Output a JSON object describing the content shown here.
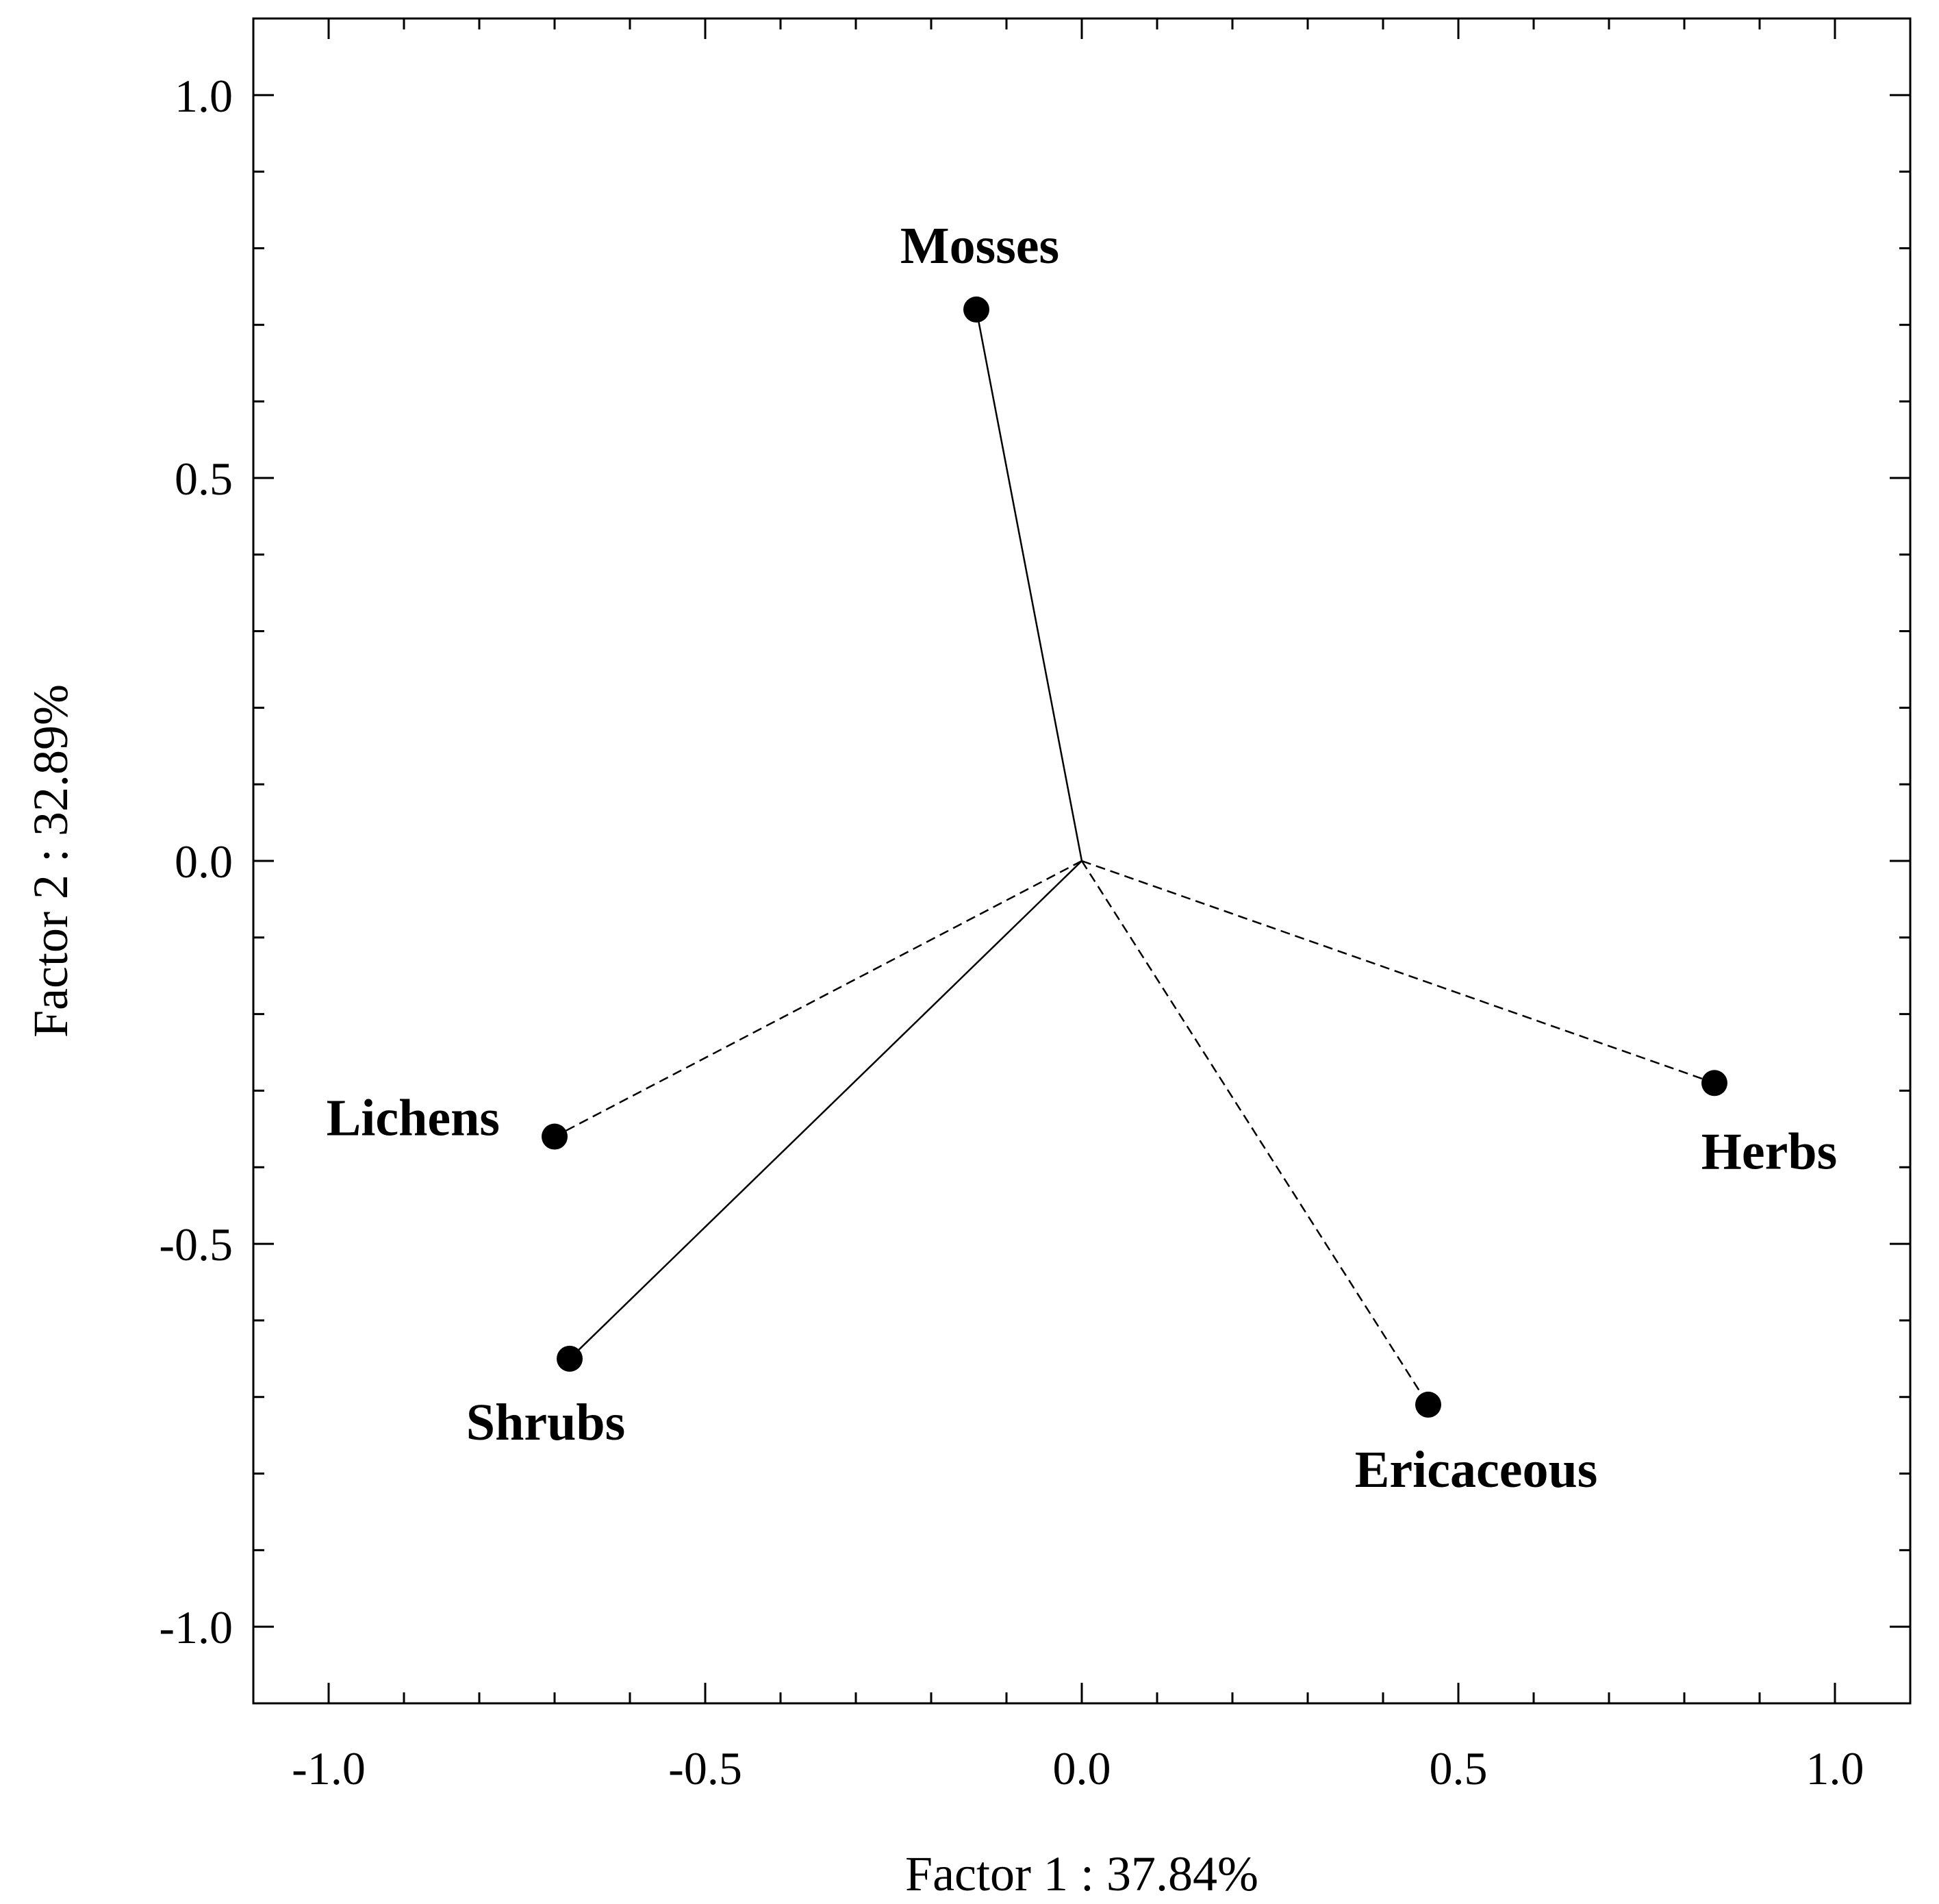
{
  "chart_data": {
    "type": "scatter",
    "xlabel": "Factor 1 : 37.84%",
    "ylabel": "Factor 2 : 32.89%",
    "xlim": [
      -1.1,
      1.1
    ],
    "ylim": [
      -1.1,
      1.1
    ],
    "xticks": [
      -1.0,
      -0.5,
      0.0,
      0.5,
      1.0
    ],
    "yticks": [
      -1.0,
      -0.5,
      0.0,
      0.5,
      1.0
    ],
    "xtick_labels": [
      "-1.0",
      "-0.5",
      "0.0",
      "0.5",
      "1.0"
    ],
    "ytick_labels": [
      "-1.0",
      "-0.5",
      "0.0",
      "0.5",
      "1.0"
    ],
    "grid": false,
    "points": [
      {
        "label": "Mosses",
        "x": -0.14,
        "y": 0.72,
        "line": "solid"
      },
      {
        "label": "Lichens",
        "x": -0.7,
        "y": -0.36,
        "line": "dashed"
      },
      {
        "label": "Shrubs",
        "x": -0.68,
        "y": -0.65,
        "line": "solid"
      },
      {
        "label": "Ericaceous",
        "x": 0.46,
        "y": -0.71,
        "line": "dashed"
      },
      {
        "label": "Herbs",
        "x": 0.84,
        "y": -0.29,
        "line": "dashed"
      }
    ]
  }
}
